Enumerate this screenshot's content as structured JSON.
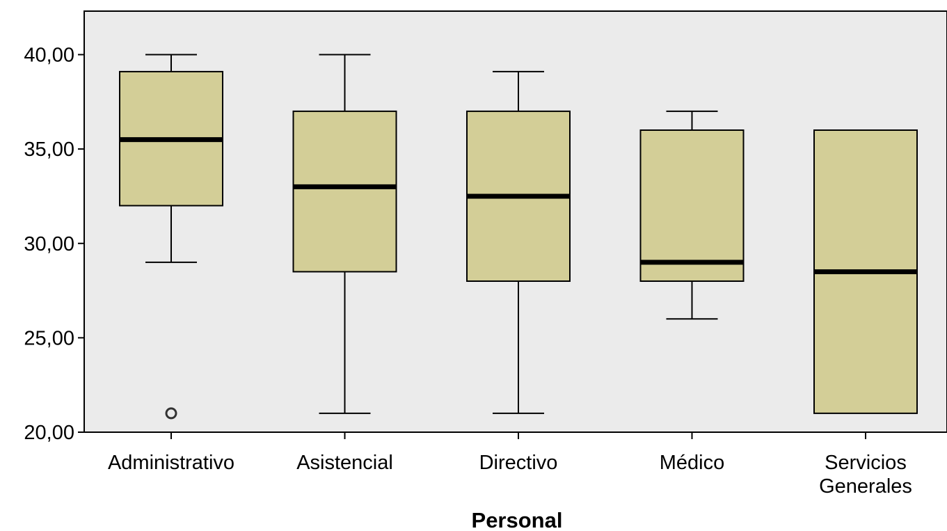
{
  "chart_data": {
    "type": "boxplot",
    "xlabel": "Personal",
    "ylabel": "",
    "ylim": [
      20,
      42.3
    ],
    "yticks": [
      "40,00",
      "35,00",
      "30,00",
      "25,00",
      "20,00"
    ],
    "ytick_values": [
      40,
      35,
      30,
      25,
      20
    ],
    "grid": false,
    "colors": {
      "plot_background": "#ebebeb",
      "box_fill": "#d3ce97",
      "stroke": "#000000"
    },
    "categories": [
      {
        "label_lines": [
          "Administrativo"
        ],
        "whisker_low": 29,
        "q1": 32,
        "median": 35.5,
        "q3": 39.1,
        "whisker_high": 40,
        "outliers": [
          21
        ]
      },
      {
        "label_lines": [
          "Asistencial"
        ],
        "whisker_low": 21,
        "q1": 28.5,
        "median": 33,
        "q3": 37,
        "whisker_high": 40,
        "outliers": []
      },
      {
        "label_lines": [
          "Directivo"
        ],
        "whisker_low": 21,
        "q1": 28,
        "median": 32.5,
        "q3": 37,
        "whisker_high": 39.1,
        "outliers": []
      },
      {
        "label_lines": [
          "Médico"
        ],
        "whisker_low": 26,
        "q1": 28,
        "median": 29,
        "q3": 36,
        "whisker_high": 37,
        "outliers": []
      },
      {
        "label_lines": [
          "Servicios",
          "Generales"
        ],
        "whisker_low": 21,
        "q1": 21,
        "median": 28.5,
        "q3": 36,
        "whisker_high": 36,
        "outliers": []
      }
    ]
  }
}
